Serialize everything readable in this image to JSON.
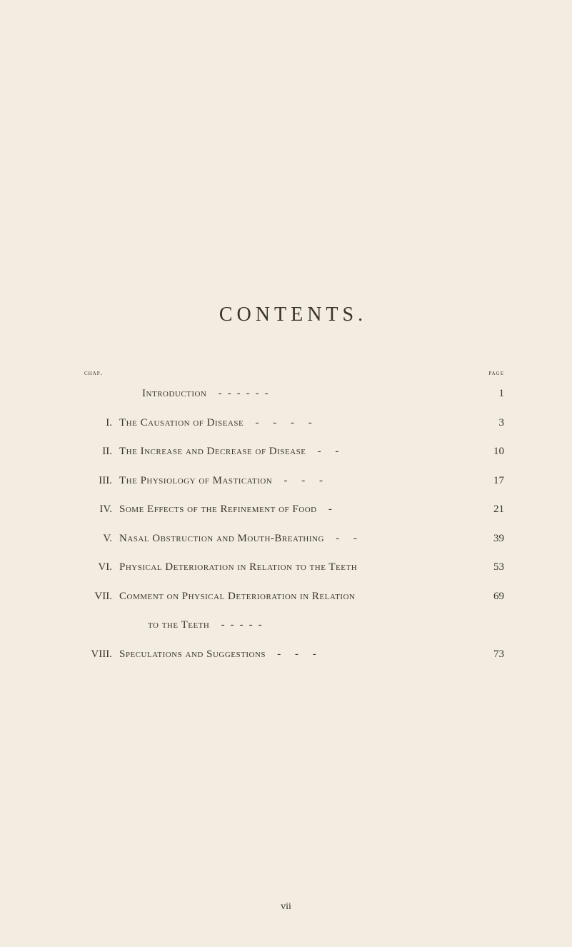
{
  "page": {
    "title": "CONTENTS.",
    "header_chap": "chap.",
    "header_page": "page",
    "page_number": "vii",
    "background_color": "#f2ede0",
    "text_color": "#3a3528",
    "title_fontsize": 28,
    "body_fontsize": 15
  },
  "entries": [
    {
      "num": "",
      "title": "Introduction",
      "leader": "------",
      "page": "1",
      "indent": true
    },
    {
      "num": "I.",
      "title": "The Causation of Disease",
      "leader": "- - - -",
      "page": "3"
    },
    {
      "num": "II.",
      "title": "The Increase and Decrease of Disease",
      "leader": "- -",
      "page": "10"
    },
    {
      "num": "III.",
      "title": "The Physiology of Mastication",
      "leader": "- - -",
      "page": "17"
    },
    {
      "num": "IV.",
      "title": "Some Effects of the Refinement of Food",
      "leader": "-",
      "page": "21"
    },
    {
      "num": "V.",
      "title": "Nasal Obstruction and Mouth-Breathing",
      "leader": "- -",
      "page": "39"
    },
    {
      "num": "VI.",
      "title": "Physical Deterioration in Relation to the Teeth",
      "leader": "",
      "page": "53"
    },
    {
      "num": "VII.",
      "title": "Comment on Physical Deterioration in Relation",
      "continuation": "to the Teeth",
      "cont_leader": "-----",
      "page": "69"
    },
    {
      "num": "VIII.",
      "title": "Speculations and Suggestions",
      "leader": "- - -",
      "page": "73"
    }
  ]
}
